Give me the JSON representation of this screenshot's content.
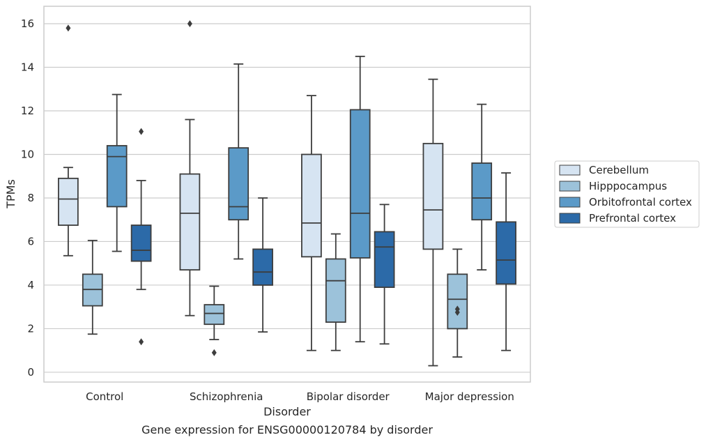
{
  "chart_data": {
    "type": "box",
    "title": "Gene expression for ENSG00000120784 by disorder",
    "xlabel": "Disorder",
    "ylabel": "TPMs",
    "ylim": [
      -0.45,
      16.8
    ],
    "yticks": [
      0,
      2,
      4,
      6,
      8,
      10,
      12,
      14,
      16
    ],
    "ytick_labels": [
      "0",
      "2",
      "4",
      "6",
      "8",
      "10",
      "12",
      "14",
      "16"
    ],
    "grid": "horizontal",
    "legend_position": "right",
    "categories": [
      "Control",
      "Schizophrenia",
      "Bipolar disorder",
      "Major depression"
    ],
    "series": [
      {
        "name": "Cerebellum",
        "color": "#d6e4f2",
        "boxes": [
          {
            "whislo": 5.35,
            "q1": 6.75,
            "med": 7.95,
            "q3": 8.9,
            "whishi": 9.4,
            "fliers": [
              15.8
            ]
          },
          {
            "whislo": 2.6,
            "q1": 4.7,
            "med": 7.3,
            "q3": 9.1,
            "whishi": 11.6,
            "fliers": [
              16.0
            ]
          },
          {
            "whislo": 1.0,
            "q1": 5.3,
            "med": 6.85,
            "q3": 10.0,
            "whishi": 12.7,
            "fliers": []
          },
          {
            "whislo": 0.3,
            "q1": 5.65,
            "med": 7.45,
            "q3": 10.5,
            "whishi": 13.45,
            "fliers": []
          }
        ]
      },
      {
        "name": "Hipppocampus",
        "color": "#9cc2da",
        "boxes": [
          {
            "whislo": 1.75,
            "q1": 3.05,
            "med": 3.8,
            "q3": 4.5,
            "whishi": 6.05,
            "fliers": []
          },
          {
            "whislo": 1.5,
            "q1": 2.2,
            "med": 2.7,
            "q3": 3.1,
            "whishi": 3.95,
            "fliers": [
              0.9
            ]
          },
          {
            "whislo": 1.0,
            "q1": 2.3,
            "med": 4.2,
            "q3": 5.2,
            "whishi": 6.35,
            "fliers": []
          },
          {
            "whislo": 0.7,
            "q1": 2.0,
            "med": 3.35,
            "q3": 4.5,
            "whishi": 5.65,
            "fliers": [
              2.75,
              2.9
            ]
          }
        ]
      },
      {
        "name": "Orbitofrontal cortex",
        "color": "#5b9ac8",
        "boxes": [
          {
            "whislo": 5.55,
            "q1": 7.6,
            "med": 9.9,
            "q3": 10.4,
            "whishi": 12.75,
            "fliers": []
          },
          {
            "whislo": 5.2,
            "q1": 7.0,
            "med": 7.6,
            "q3": 10.3,
            "whishi": 14.15,
            "fliers": []
          },
          {
            "whislo": 1.4,
            "q1": 5.25,
            "med": 7.3,
            "q3": 12.05,
            "whishi": 14.5,
            "fliers": []
          },
          {
            "whislo": 4.7,
            "q1": 7.0,
            "med": 8.0,
            "q3": 9.6,
            "whishi": 12.3,
            "fliers": []
          }
        ]
      },
      {
        "name": "Prefrontal cortex",
        "color": "#2c6aa8",
        "boxes": [
          {
            "whislo": 3.8,
            "q1": 5.1,
            "med": 5.6,
            "q3": 6.75,
            "whishi": 8.8,
            "fliers": [
              11.05,
              1.4
            ]
          },
          {
            "whislo": 1.85,
            "q1": 4.0,
            "med": 4.6,
            "q3": 5.65,
            "whishi": 8.0,
            "fliers": []
          },
          {
            "whislo": 1.3,
            "q1": 3.9,
            "med": 5.75,
            "q3": 6.45,
            "whishi": 7.7,
            "fliers": []
          },
          {
            "whislo": 1.0,
            "q1": 4.05,
            "med": 5.15,
            "q3": 6.9,
            "whishi": 9.15,
            "fliers": []
          }
        ]
      }
    ]
  }
}
